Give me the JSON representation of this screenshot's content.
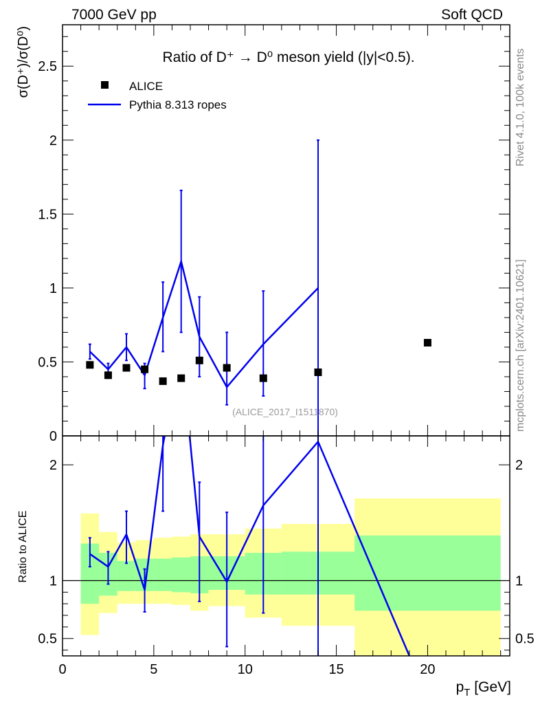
{
  "header": {
    "left": "7000 GeV pp",
    "right": "Soft QCD"
  },
  "side_labels": {
    "rivet": "Rivet 4.1.0,  100k events",
    "mcplots": "mcplots.cern.ch [arXiv:2401.10621]"
  },
  "colors": {
    "mc": "#0000ee",
    "data": "#000000",
    "band_inner": "#99ff99",
    "band_outer": "#ffff99",
    "watermark": "#999999",
    "side_text": "#888888"
  },
  "chart_data": [
    {
      "id": "main",
      "type": "scatter",
      "title": "Ratio of D⁺ → D⁰ meson yield (|y|<0.5).",
      "ylabel": "σ(D⁺)/σ(D⁰)",
      "xlabel": "",
      "xlim": [
        0,
        24.5
      ],
      "ylim": [
        0,
        2.78
      ],
      "yticks": [
        0,
        0.5,
        1,
        1.5,
        2,
        2.5
      ],
      "ytick_labels": [
        "0",
        "0.5",
        "1",
        "1.5",
        "2",
        "2.5"
      ],
      "watermark": "(ALICE_2017_I1511870)",
      "legend": [
        {
          "label": "ALICE",
          "kind": "marker"
        },
        {
          "label": "Pythia 8.313 ropes",
          "kind": "line"
        }
      ],
      "data_series": {
        "name": "ALICE",
        "x": [
          1.5,
          2.5,
          3.5,
          4.5,
          5.5,
          6.5,
          7.5,
          9.0,
          11.0,
          14.0,
          20.0
        ],
        "y": [
          0.48,
          0.41,
          0.46,
          0.45,
          0.37,
          0.39,
          0.51,
          0.46,
          0.39,
          0.43,
          0.63
        ]
      },
      "mc_series": {
        "name": "Pythia 8.313 ropes",
        "x": [
          1.5,
          2.5,
          3.5,
          4.5,
          5.5,
          6.5,
          7.5,
          9.0,
          11.0,
          14.0
        ],
        "y": [
          0.57,
          0.45,
          0.6,
          0.41,
          0.8,
          1.18,
          0.67,
          0.33,
          0.62,
          1.0
        ],
        "err_low": [
          0.52,
          0.39,
          0.51,
          0.32,
          0.57,
          0.7,
          0.4,
          0.21,
          0.27,
          0.0
        ],
        "err_high": [
          0.62,
          0.49,
          0.69,
          0.49,
          1.04,
          1.66,
          0.94,
          0.7,
          0.98,
          2.0
        ]
      }
    },
    {
      "id": "ratio",
      "type": "line",
      "title": "",
      "ylabel": "Ratio to ALICE",
      "xlabel": "p_T [GeV]",
      "xlabel_main": "p",
      "xlabel_sub": "T",
      "xlabel_unit": " [GeV]",
      "xlim": [
        0,
        24.5
      ],
      "ylim": [
        0.35,
        2.25
      ],
      "xticks": [
        0,
        5,
        10,
        15,
        20
      ],
      "xtick_labels": [
        "0",
        "5",
        "10",
        "15",
        "20"
      ],
      "yticks": [
        0.5,
        1,
        2
      ],
      "ytick_labels": [
        "0.5",
        "1",
        "2"
      ],
      "reference_line": 1,
      "bands": {
        "edges": [
          1.0,
          2.0,
          3.0,
          4.0,
          5.0,
          6.0,
          7.0,
          8.0,
          10.0,
          12.0,
          16.0,
          24.0
        ],
        "inner_low": [
          0.8,
          0.87,
          0.91,
          0.91,
          0.91,
          0.9,
          0.89,
          0.92,
          0.88,
          0.88,
          0.74
        ],
        "inner_high": [
          1.32,
          1.24,
          1.17,
          1.19,
          1.19,
          1.2,
          1.21,
          1.21,
          1.24,
          1.25,
          1.39
        ],
        "outer_low": [
          0.53,
          0.72,
          0.8,
          0.8,
          0.8,
          0.79,
          0.74,
          0.78,
          0.68,
          0.61,
          0.35
        ],
        "outer_high": [
          1.58,
          1.42,
          1.33,
          1.35,
          1.37,
          1.38,
          1.4,
          1.4,
          1.45,
          1.49,
          1.71
        ]
      },
      "mc_series": {
        "name": "Pythia 8.313 ropes",
        "x": [
          1.5,
          2.5,
          3.5,
          4.5,
          5.5,
          6.5,
          7.5,
          9.0,
          11.0,
          14.0,
          19.0
        ],
        "y": [
          1.23,
          1.12,
          1.4,
          0.92,
          2.17,
          3.0,
          1.38,
          0.99,
          1.65,
          2.2,
          0.35
        ],
        "err_low": [
          1.12,
          0.97,
          1.15,
          0.73,
          1.6,
          null,
          0.82,
          0.43,
          0.72,
          0.0,
          null
        ],
        "err_high": [
          1.37,
          1.25,
          1.6,
          1.1,
          2.4,
          null,
          1.85,
          1.59,
          2.4,
          2.4,
          null
        ]
      }
    }
  ]
}
